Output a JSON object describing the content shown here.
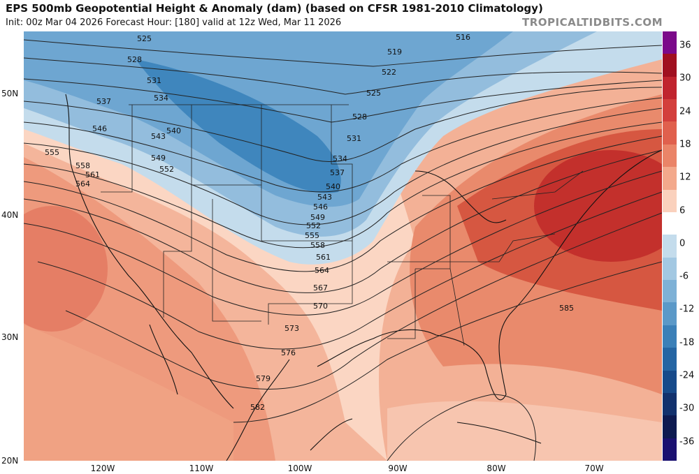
{
  "header": {
    "title": "EPS 500mb Geopotential Height & Anomaly (dam) (based on CFSR 1981-2010 Climatology)",
    "subtitle": "Init: 00z Mar 04 2026   Forecast Hour: [180]   valid at 12z Wed, Mar 11 2026",
    "brand": "TROPICALTIDBITS.COM"
  },
  "axes": {
    "lat_labels": [
      "50N",
      "40N",
      "30N",
      "20N"
    ],
    "lon_labels": [
      "120W",
      "110W",
      "100W",
      "90W",
      "80W",
      "70W"
    ]
  },
  "colorbar": {
    "labels": [
      "36",
      "30",
      "24",
      "18",
      "12",
      "6",
      "0",
      "-6",
      "-12",
      "-18",
      "-24",
      "-30",
      "-36"
    ],
    "colors": [
      "#7b0a8a",
      "#a01020",
      "#c0242e",
      "#d33f3c",
      "#e0604d",
      "#ea8468",
      "#f3a98c",
      "#fad1bd",
      "#ffffff",
      "#c4dcec",
      "#a3c8e2",
      "#7eb1d6",
      "#5b99c8",
      "#3b80b8",
      "#2565a3",
      "#174a8a",
      "#12316d",
      "#0d1a50",
      "#1a1070"
    ]
  },
  "contours": {
    "labels": [
      "516",
      "519",
      "522",
      "525",
      "525",
      "528",
      "528",
      "531",
      "531",
      "534",
      "534",
      "537",
      "537",
      "540",
      "540",
      "543",
      "543",
      "546",
      "546",
      "549",
      "549",
      "552",
      "552",
      "555",
      "555",
      "558",
      "558",
      "561",
      "561",
      "564",
      "564",
      "567",
      "570",
      "573",
      "576",
      "579",
      "582",
      "585"
    ]
  }
}
